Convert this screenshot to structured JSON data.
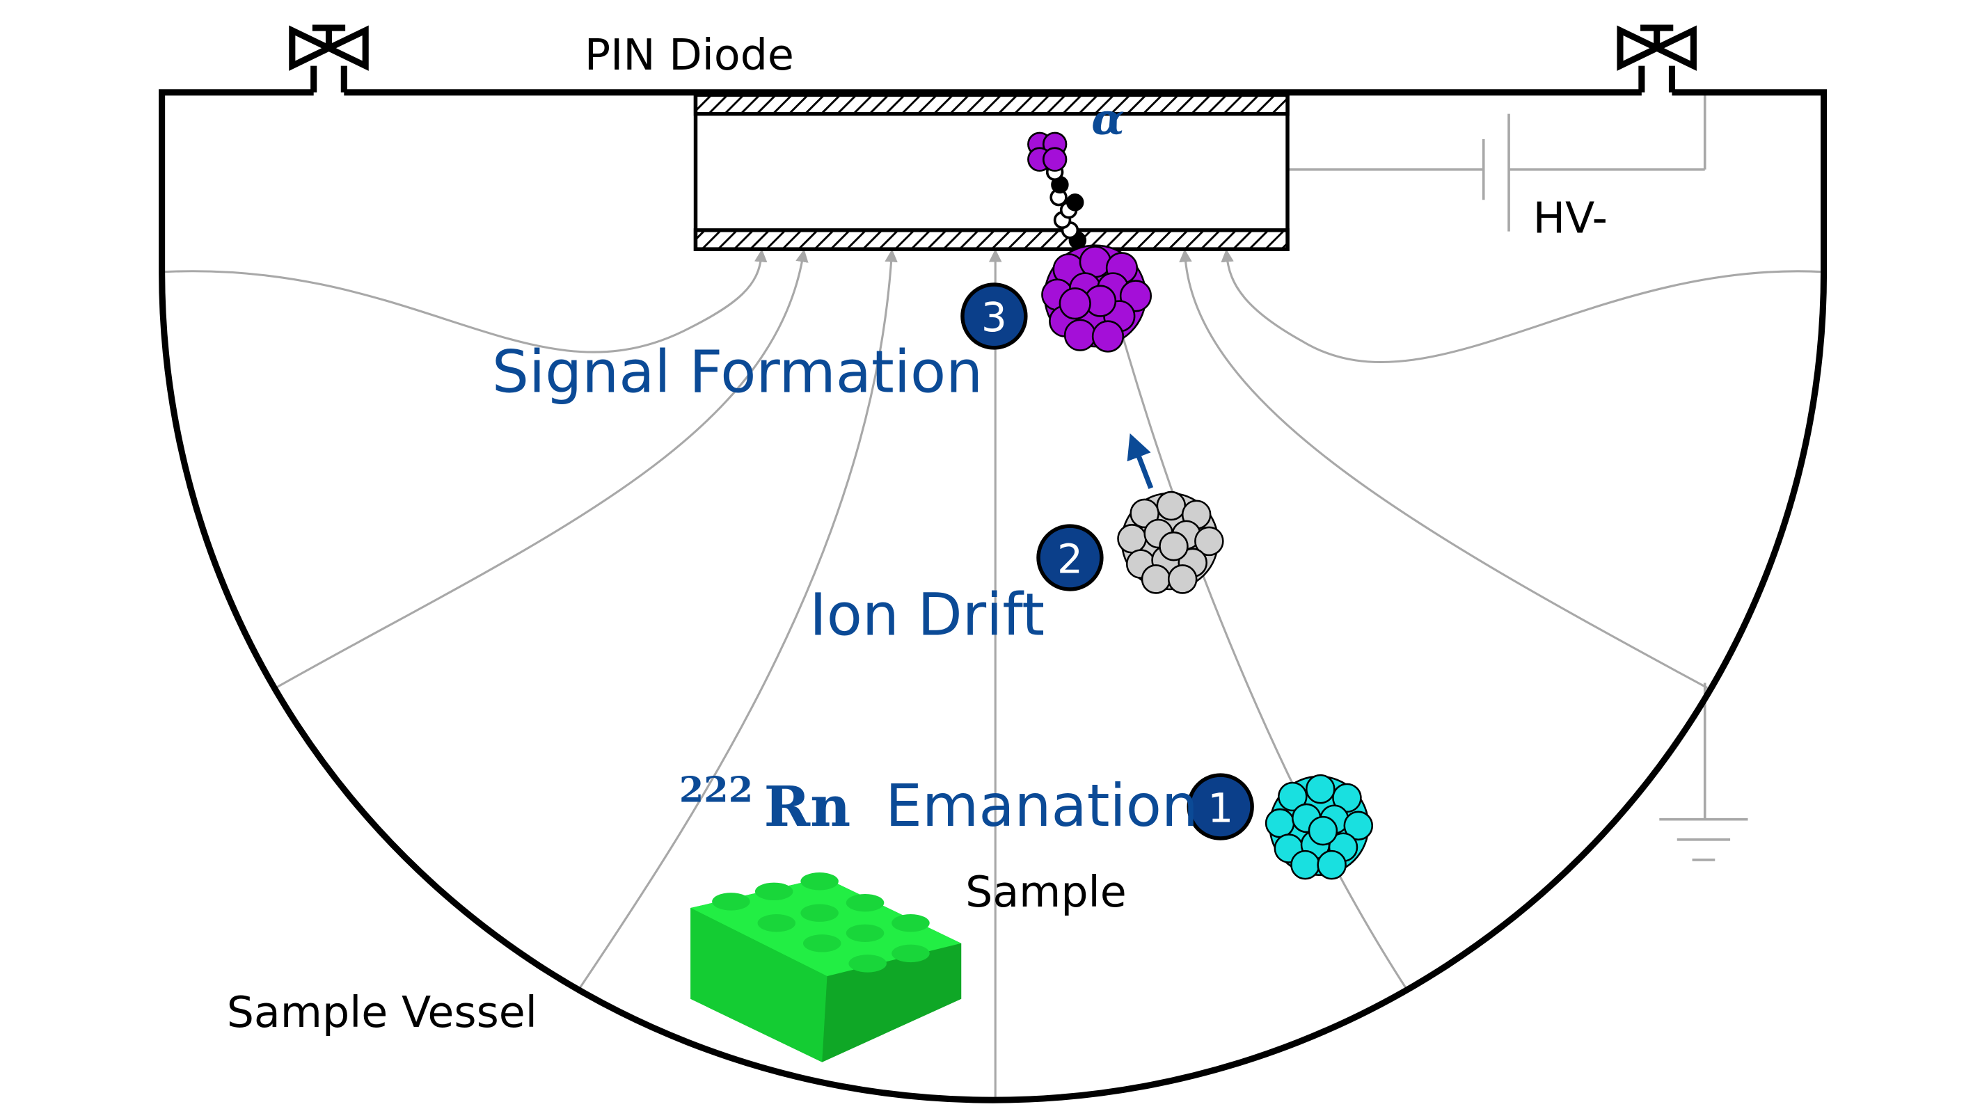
{
  "labels": {
    "pin_diode": "PIN Diode",
    "hv": "HV-",
    "alpha": "α",
    "signal_formation": "Signal Formation",
    "ion_drift": "Ion Drift",
    "isotope_mass": "222",
    "isotope_symbol": "Rn",
    "emanation": "Emanation",
    "sample": "Sample",
    "sample_vessel": "Sample Vessel"
  },
  "steps": [
    {
      "number": "1"
    },
    {
      "number": "2"
    },
    {
      "number": "3"
    }
  ],
  "colors": {
    "label_blue": "#0b4a96",
    "badge_fill": "#0b3f8a",
    "field_line": "#a8a8a8",
    "nucleus_cyan": "#19e0e0",
    "nucleus_gray": "#cfcfcf",
    "nucleus_purple": "#a40fd8",
    "sample_green": "#17e63a"
  },
  "icons": {
    "valve_left": "valve-icon",
    "valve_right": "valve-icon",
    "ground": "ground-icon",
    "battery": "battery-icon"
  }
}
